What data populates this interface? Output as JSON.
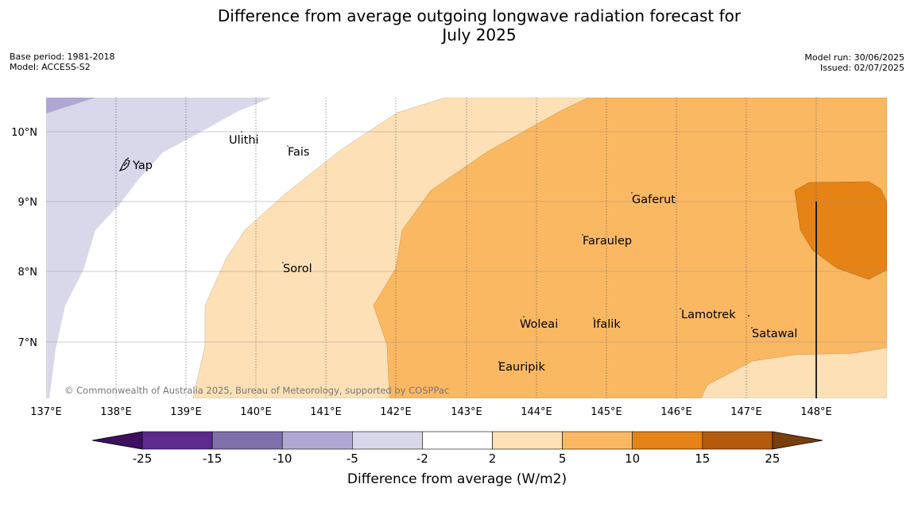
{
  "title_line1": "Difference from average outgoing longwave radiation forecast for",
  "title_line2": "July 2025",
  "meta_left": {
    "base_period": "Base period: 1981-2018",
    "model": "Model: ACCESS-S2"
  },
  "meta_right": {
    "model_run": "Model run: 30/06/2025",
    "issued": "Issued: 02/07/2025"
  },
  "copyright": "© Commonwealth of Australia 2025, Bureau of Meteorology, supported by COSPPac",
  "lat_labels": [
    "10°N",
    "9°N",
    "8°N",
    "7°N"
  ],
  "lon_labels": [
    "137°E",
    "138°E",
    "139°E",
    "140°E",
    "141°E",
    "142°E",
    "143°E",
    "144°E",
    "145°E",
    "146°E",
    "147°E",
    "148°E"
  ],
  "places": [
    "Yap",
    "Ulithi",
    "Fais",
    "Gaferut",
    "Faraulep",
    "Sorol",
    "Woleai",
    "Ifalik",
    "Lamotrek",
    "Satawal",
    "Eauripik"
  ],
  "colorbar": {
    "ticks": [
      "-25",
      "-15",
      "-10",
      "-5",
      "-2",
      "2",
      "5",
      "10",
      "15",
      "25"
    ],
    "colors": [
      "#3d1060",
      "#5b2a8c",
      "#7f6fab",
      "#b0a8d2",
      "#d8d8ea",
      "#ffffff",
      "#fde0b6",
      "#fbb862",
      "#e58316",
      "#b45a0c",
      "#7b3d0a"
    ],
    "label": "Difference from average (W/m2)"
  }
}
